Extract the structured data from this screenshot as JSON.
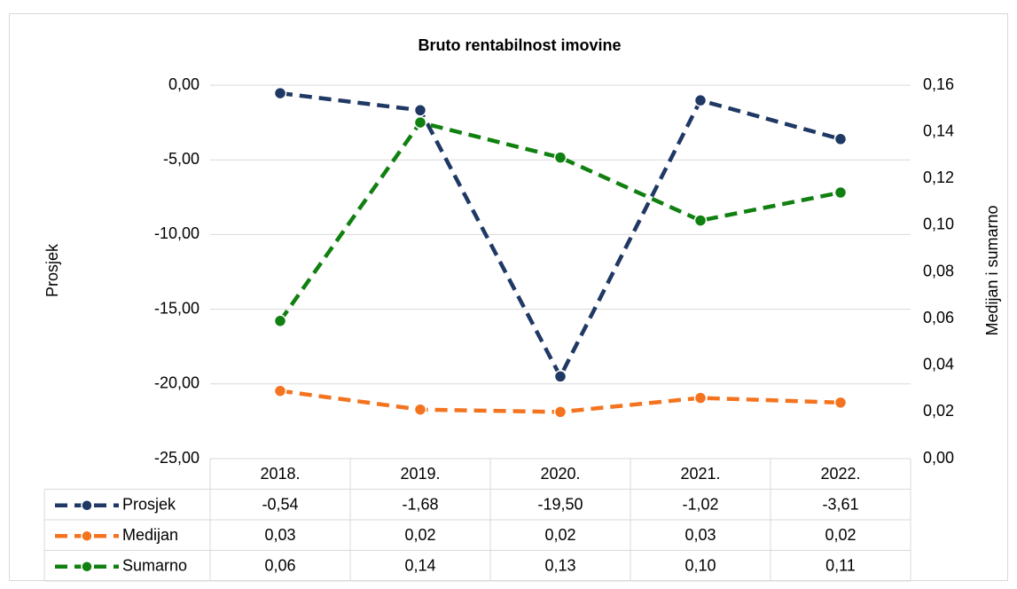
{
  "chart_data": {
    "type": "line",
    "title": "Bruto rentabilnost imovine",
    "ylabel": "Prosjek",
    "y2label": "Medijan i sumarno",
    "categories": [
      "2018.",
      "2019.",
      "2020.",
      "2021.",
      "2022."
    ],
    "ylim": [
      -25,
      0
    ],
    "yticks": [
      {
        "value": -25,
        "label": "-25,00"
      },
      {
        "value": -20,
        "label": "-20,00"
      },
      {
        "value": -15,
        "label": "-15,00"
      },
      {
        "value": -10,
        "label": "-10,00"
      },
      {
        "value": -5,
        "label": "-5,00"
      },
      {
        "value": 0,
        "label": "0,00"
      }
    ],
    "y2lim": [
      0,
      0.16
    ],
    "y2ticks": [
      {
        "value": 0,
        "label": "0,00"
      },
      {
        "value": 0.02,
        "label": "0,02"
      },
      {
        "value": 0.04,
        "label": "0,04"
      },
      {
        "value": 0.06,
        "label": "0,06"
      },
      {
        "value": 0.08,
        "label": "0,08"
      },
      {
        "value": 0.1,
        "label": "0,10"
      },
      {
        "value": 0.12,
        "label": "0,12"
      },
      {
        "value": 0.14,
        "label": "0,14"
      },
      {
        "value": 0.16,
        "label": "0,16"
      }
    ],
    "grid": true,
    "series": [
      {
        "name": "Prosjek",
        "color": "#1f3864",
        "values": [
          -0.54,
          -1.68,
          -19.5,
          -1.02,
          -3.61
        ],
        "value_labels": [
          "-0,54",
          "-1,68",
          "-19,50",
          "-1,02",
          "-3,61"
        ]
      },
      {
        "name": "Medijan",
        "color": "#f4731f",
        "axis": "y2",
        "values": [
          0.029,
          0.021,
          0.02,
          0.026,
          0.024
        ],
        "value_labels": [
          "0,03",
          "0,02",
          "0,02",
          "0,03",
          "0,02"
        ]
      },
      {
        "name": "Sumarno",
        "color": "#108010",
        "axis": "y2",
        "values": [
          0.059,
          0.144,
          0.129,
          0.102,
          0.114
        ],
        "value_labels": [
          "0,06",
          "0,14",
          "0,13",
          "0,10",
          "0,11"
        ]
      }
    ]
  }
}
